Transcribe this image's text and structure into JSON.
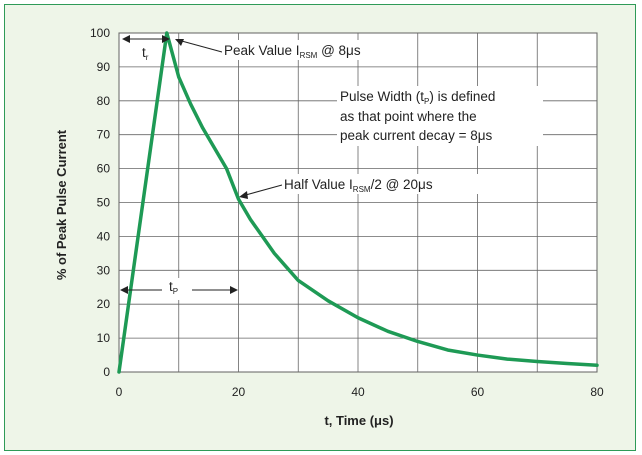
{
  "chart_data": {
    "type": "line",
    "xlabel": "t, Time (μs)",
    "ylabel": "% of Peak Pulse Current",
    "xlim": [
      0,
      80
    ],
    "ylim": [
      0,
      100
    ],
    "xticks": [
      "0",
      "20",
      "40",
      "60",
      "80"
    ],
    "yticks": [
      "0",
      "10",
      "20",
      "30",
      "40",
      "50",
      "60",
      "70",
      "80",
      "90",
      "100"
    ],
    "grid": true,
    "series": [
      {
        "color": "#1e9a55",
        "x": [
          0,
          8,
          10,
          12,
          14,
          16,
          18,
          20,
          22,
          24,
          26,
          28,
          30,
          35,
          40,
          45,
          50,
          55,
          60,
          65,
          70,
          75,
          80
        ],
        "y": [
          0,
          100,
          87,
          79,
          72,
          66,
          60,
          51,
          45,
          40,
          35,
          31,
          27,
          21,
          16,
          12,
          9,
          6.5,
          5,
          3.8,
          3.1,
          2.5,
          2
        ]
      }
    ],
    "annotations": {
      "tr": {
        "main": "t",
        "sub": "r"
      },
      "tp": {
        "main": "t",
        "sub": "P"
      },
      "peak": {
        "pre": "Peak Value I",
        "sub": "RSM",
        "post": " @ 8μs"
      },
      "half": {
        "pre": "Half Value I",
        "sub": "RSM",
        "post": "/2 @ 20μs"
      },
      "pulse_width": {
        "line1_pre": "Pulse Width (t",
        "line1_sub": "P",
        "line1_post": ") is defined",
        "line2": "as that point where the",
        "line3": "peak current decay = 8μs"
      }
    }
  }
}
